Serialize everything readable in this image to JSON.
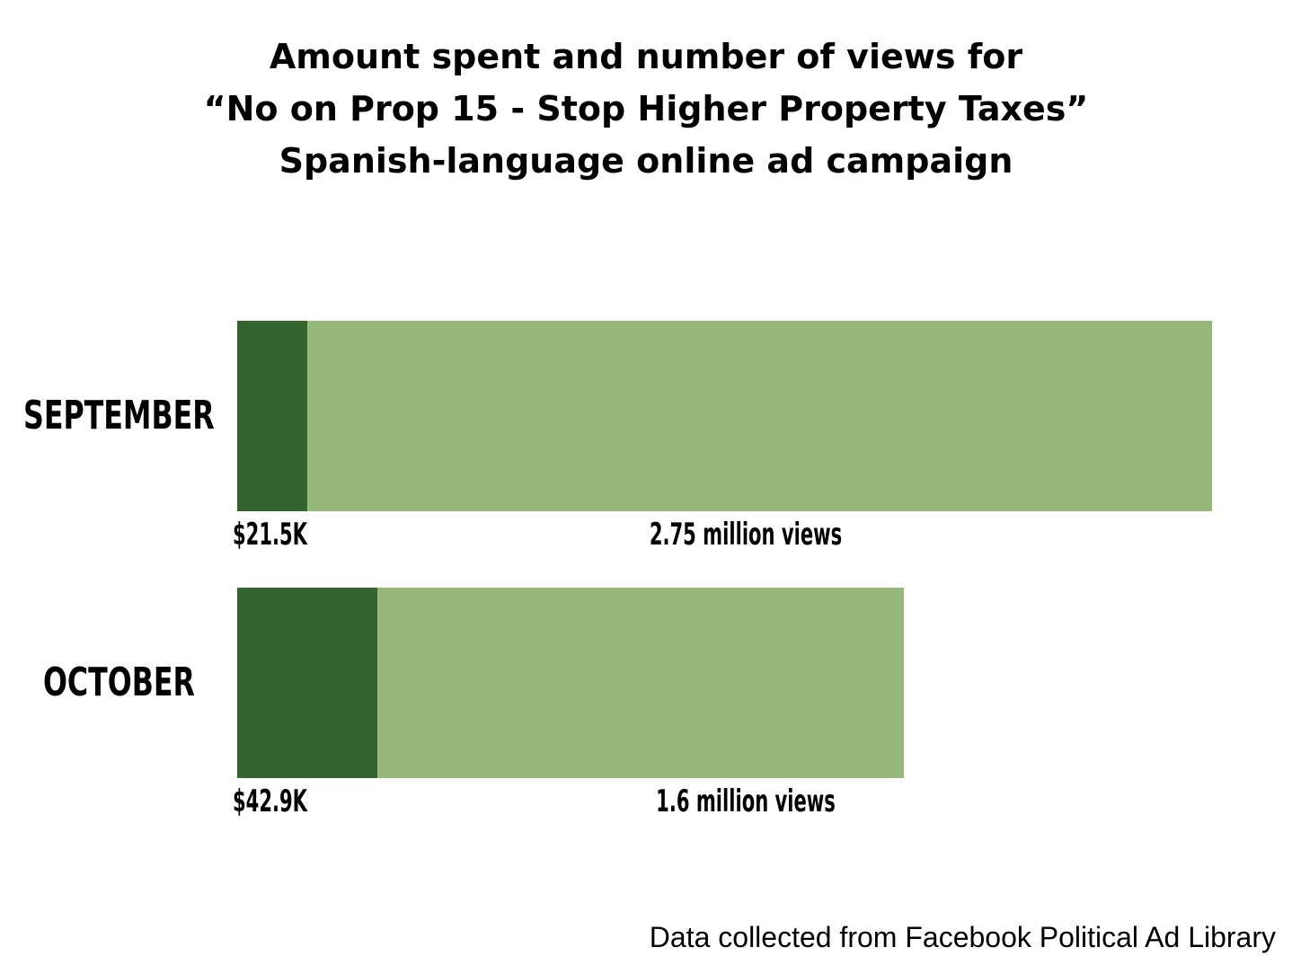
{
  "chart_data": {
    "type": "bar",
    "orientation": "horizontal",
    "stacked": true,
    "title_lines": [
      "Amount spent and number of views for",
      "“No on Prop 15 - Stop Higher Property Taxes”",
      "Spanish-language online ad campaign"
    ],
    "categories": [
      "SEPTEMBER",
      "OCTOBER"
    ],
    "series": [
      {
        "values": [
          21.5,
          42.9
        ],
        "labels": [
          "$21.5K",
          "$42.9K"
        ],
        "color": "#346531"
      },
      {
        "values": [
          2.75,
          1.6
        ],
        "labels": [
          "2.75 million views",
          "1.6 million views"
        ],
        "color": "#96b87a"
      }
    ],
    "grid": false,
    "legend": "none",
    "source_note": "Data collected from Facebook Political Ad Library"
  }
}
